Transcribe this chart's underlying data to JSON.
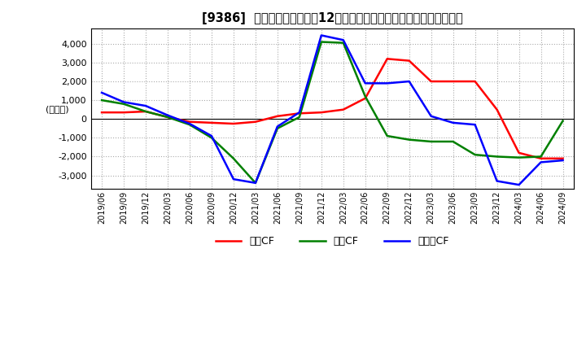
{
  "title": "[9386]  キャッシュフローの12か月移動合計の対前年同期増減額の推移",
  "ylabel": "(百万円)",
  "ylim": [
    -3700,
    4800
  ],
  "yticks": [
    -3000,
    -2000,
    -1000,
    0,
    1000,
    2000,
    3000,
    4000
  ],
  "dates": [
    "2019/06",
    "2019/09",
    "2019/12",
    "2020/03",
    "2020/06",
    "2020/09",
    "2020/12",
    "2021/03",
    "2021/06",
    "2021/09",
    "2021/12",
    "2022/03",
    "2022/06",
    "2022/09",
    "2022/12",
    "2023/03",
    "2023/06",
    "2023/09",
    "2023/12",
    "2024/03",
    "2024/06",
    "2024/09"
  ],
  "operating_cf": [
    350,
    350,
    400,
    100,
    -150,
    -200,
    -250,
    -150,
    150,
    300,
    350,
    500,
    1100,
    3200,
    3100,
    2000,
    2000,
    2000,
    500,
    -1800,
    -2100,
    -2100
  ],
  "investing_cf": [
    1000,
    800,
    400,
    100,
    -300,
    -1000,
    -2100,
    -3400,
    -500,
    100,
    4100,
    4050,
    1200,
    -900,
    -1100,
    -1200,
    -1200,
    -1900,
    -2000,
    -2050,
    -2000,
    -100
  ],
  "free_cf": [
    1400,
    900,
    700,
    200,
    -250,
    -900,
    -3200,
    -3400,
    -400,
    350,
    4450,
    4200,
    1900,
    1900,
    2000,
    150,
    -200,
    -300,
    -3300,
    -3500,
    -2300,
    -2200
  ],
  "line_colors": {
    "operating_cf": "#ff0000",
    "investing_cf": "#008000",
    "free_cf": "#0000ff"
  },
  "legend_labels": [
    "営業CF",
    "投資CF",
    "フリーCF"
  ],
  "background_color": "#ffffff",
  "grid_color": "#aaaaaa",
  "title_fontsize": 10.5,
  "label_fontsize": 8
}
